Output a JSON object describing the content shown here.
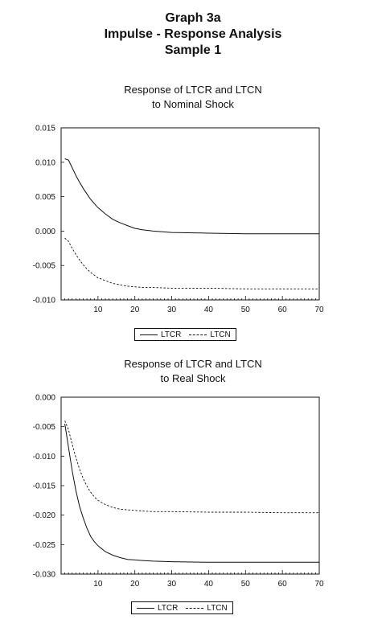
{
  "header": {
    "line1": "Graph 3a",
    "line2": "Impulse - Response Analysis",
    "line3": "Sample 1"
  },
  "chart_data": [
    {
      "type": "line",
      "title_line1": "Response of LTCR and LTCN",
      "title_line2": "to Nominal Shock",
      "xlim": [
        0,
        70
      ],
      "ylim": [
        -0.01,
        0.015
      ],
      "xticks": [
        10,
        20,
        30,
        40,
        50,
        60,
        70
      ],
      "yticks": [
        0.015,
        0.01,
        0.005,
        0.0,
        -0.005,
        -0.01
      ],
      "ytick_labels": [
        "0.015",
        "0.010",
        "0.005",
        "0.000",
        "-0.005",
        "-0.010"
      ],
      "legend": [
        "LTCR",
        "LTCN"
      ],
      "legend_position": "bottom-center",
      "series": [
        {
          "name": "LTCR",
          "style": "solid",
          "x": [
            1,
            2,
            3,
            4,
            5,
            6,
            7,
            8,
            9,
            10,
            12,
            14,
            16,
            18,
            20,
            22,
            25,
            30,
            40,
            50,
            60,
            70
          ],
          "y": [
            0.0105,
            0.0103,
            0.0092,
            0.0081,
            0.0071,
            0.0062,
            0.0054,
            0.0046,
            0.004,
            0.0034,
            0.0025,
            0.0017,
            0.0012,
            0.0008,
            0.0004,
            0.0002,
            0.0,
            -0.0002,
            -0.0003,
            -0.0004,
            -0.0004,
            -0.0004
          ]
        },
        {
          "name": "LTCN",
          "style": "dashed",
          "x": [
            1,
            2,
            3,
            4,
            5,
            6,
            7,
            8,
            9,
            10,
            12,
            14,
            16,
            18,
            20,
            22,
            25,
            30,
            40,
            50,
            60,
            70
          ],
          "y": [
            -0.001,
            -0.0015,
            -0.0025,
            -0.0034,
            -0.0042,
            -0.0049,
            -0.0055,
            -0.006,
            -0.0064,
            -0.0068,
            -0.0072,
            -0.0076,
            -0.0078,
            -0.008,
            -0.0081,
            -0.0082,
            -0.0082,
            -0.0083,
            -0.0083,
            -0.0084,
            -0.0084,
            -0.0084
          ]
        }
      ]
    },
    {
      "type": "line",
      "title_line1": "Response of LTCR and LTCN",
      "title_line2": "to Real Shock",
      "xlim": [
        0,
        70
      ],
      "ylim": [
        -0.03,
        0.0
      ],
      "xticks": [
        10,
        20,
        30,
        40,
        50,
        60,
        70
      ],
      "yticks": [
        0.0,
        -0.005,
        -0.01,
        -0.015,
        -0.02,
        -0.025,
        -0.03
      ],
      "ytick_labels": [
        "0.000",
        "-0.005",
        "-0.010",
        "-0.015",
        "-0.020",
        "-0.025",
        "-0.030"
      ],
      "legend": [
        "LTCR",
        "LTCN"
      ],
      "legend_position": "bottom-center",
      "series": [
        {
          "name": "LTCR",
          "style": "solid",
          "x": [
            1,
            2,
            3,
            4,
            5,
            6,
            7,
            8,
            9,
            10,
            12,
            14,
            16,
            18,
            20,
            22,
            25,
            30,
            40,
            50,
            60,
            70
          ],
          "y": [
            -0.0045,
            -0.0085,
            -0.0125,
            -0.0158,
            -0.0185,
            -0.0205,
            -0.0222,
            -0.0236,
            -0.0245,
            -0.0252,
            -0.0262,
            -0.0268,
            -0.0272,
            -0.0275,
            -0.0276,
            -0.0277,
            -0.0278,
            -0.0279,
            -0.028,
            -0.028,
            -0.028,
            -0.028
          ]
        },
        {
          "name": "LTCN",
          "style": "dashed",
          "x": [
            1,
            2,
            3,
            4,
            5,
            6,
            7,
            8,
            9,
            10,
            12,
            14,
            16,
            18,
            20,
            22,
            25,
            30,
            40,
            50,
            60,
            70
          ],
          "y": [
            -0.004,
            -0.0055,
            -0.008,
            -0.0102,
            -0.0122,
            -0.0138,
            -0.0151,
            -0.0161,
            -0.0169,
            -0.0175,
            -0.0182,
            -0.0187,
            -0.019,
            -0.0191,
            -0.0192,
            -0.0193,
            -0.0194,
            -0.0194,
            -0.0195,
            -0.0195,
            -0.0196,
            -0.0196
          ]
        }
      ]
    }
  ]
}
